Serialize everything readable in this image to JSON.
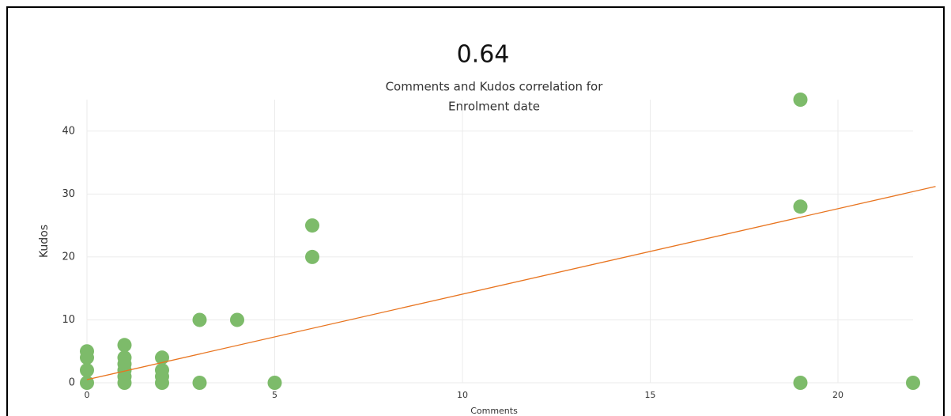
{
  "chart_data": {
    "type": "scatter",
    "title": "0.64",
    "subtitle": [
      "Comments and Kudos correlation for",
      "Enrolment date"
    ],
    "x_label": "Comments",
    "y_label": "Kudos",
    "x": [
      0,
      0,
      0,
      0,
      1,
      1,
      1,
      1,
      1,
      1,
      2,
      2,
      2,
      2,
      3,
      3,
      4,
      5,
      6,
      6,
      19,
      19,
      19,
      22
    ],
    "values": [
      5,
      4,
      2,
      0,
      6,
      4,
      3,
      2,
      1,
      0,
      4,
      2,
      1,
      0,
      10,
      0,
      10,
      0,
      25,
      20,
      45,
      28,
      0,
      0
    ],
    "color": "#7dbb6a",
    "trendline": {
      "x": [
        0,
        22.6
      ],
      "y": [
        0.5,
        31.2
      ],
      "color": "#e8741f"
    },
    "xlim": [
      0,
      22
    ],
    "ylim": [
      0,
      45
    ],
    "xticks": [
      0,
      5,
      10,
      15,
      20
    ],
    "yticks": [
      0,
      10,
      20,
      30,
      40
    ],
    "grid": true
  }
}
